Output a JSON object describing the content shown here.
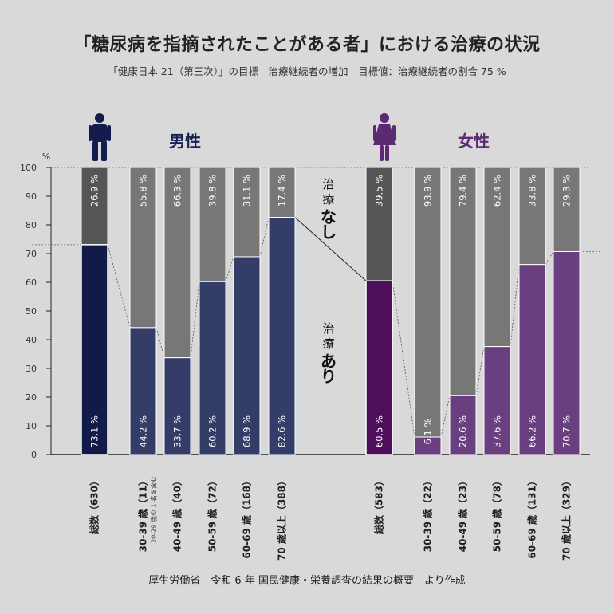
{
  "title": "「糖尿病を指摘されたことがある者」における治療の状況",
  "subtitle": "「健康日本 21（第三次）」の目標　治療継続者の増加　目標値：治療継続者の割合 75 %",
  "footer": "厚生労働省　令和 6 年 国民健康・栄養調査の結果の概要　より作成",
  "colors": {
    "background": "#d9d9d9",
    "male_total": "#121a4a",
    "male_age": "#343d68",
    "male_icon": "#141b4d",
    "male_label": "#1a2156",
    "female_total": "#4d0f5c",
    "female_age": "#6a3f80",
    "female_icon": "#5b2a73",
    "female_label": "#5b2a73",
    "none_total": "#555555",
    "none_age": "#777777"
  },
  "chart_data": {
    "type": "bar",
    "stacked": true,
    "ylim": [
      0,
      100
    ],
    "yunit": "%",
    "yticks": [
      0,
      10,
      20,
      30,
      40,
      50,
      60,
      70,
      80,
      90,
      100
    ],
    "series_labels": {
      "treated": [
        "治",
        "療",
        "あ",
        "り"
      ],
      "untreated": [
        "治",
        "療",
        "な",
        "し"
      ]
    },
    "groups": [
      {
        "name": "男性",
        "icon": "male-icon",
        "categories": [
          "総数（630）",
          "30-39 歳（11）",
          "40-49 歳（40）",
          "50-59 歳（72）",
          "60-69 歳（168）",
          "70 歳以上（388）"
        ],
        "category_notes": [
          "",
          "20-29 歳の 1 名を含む",
          "",
          "",
          "",
          ""
        ],
        "treated": [
          73.1,
          44.2,
          33.7,
          60.2,
          68.9,
          82.6
        ],
        "untreated": [
          26.9,
          55.8,
          66.3,
          39.8,
          31.1,
          17.4
        ],
        "treated_labels": [
          "73.1 %",
          "44.2 %",
          "33.7 %",
          "60.2 %",
          "68.9 %",
          "82.6 %"
        ],
        "untreated_labels": [
          "26.9 %",
          "55.8 %",
          "66.3 %",
          "39.8 %",
          "31.1 %",
          "17.4 %"
        ]
      },
      {
        "name": "女性",
        "icon": "female-icon",
        "categories": [
          "総数（583）",
          "30-39 歳（22）",
          "40-49 歳（23）",
          "50-59 歳（78）",
          "60-69 歳（131）",
          "70 歳以上（329）"
        ],
        "category_notes": [
          "",
          "",
          "",
          "",
          "",
          ""
        ],
        "treated": [
          60.5,
          6.1,
          20.6,
          37.6,
          66.2,
          70.7
        ],
        "untreated": [
          39.5,
          93.9,
          79.4,
          62.4,
          33.8,
          29.3
        ],
        "treated_labels": [
          "60.5 %",
          "6.1 %",
          "20.6 %",
          "37.6 %",
          "66.2 %",
          "70.7 %"
        ],
        "untreated_labels": [
          "39.5 %",
          "93.9 %",
          "79.4 %",
          "62.4 %",
          "33.8 %",
          "29.3 %"
        ]
      }
    ]
  }
}
